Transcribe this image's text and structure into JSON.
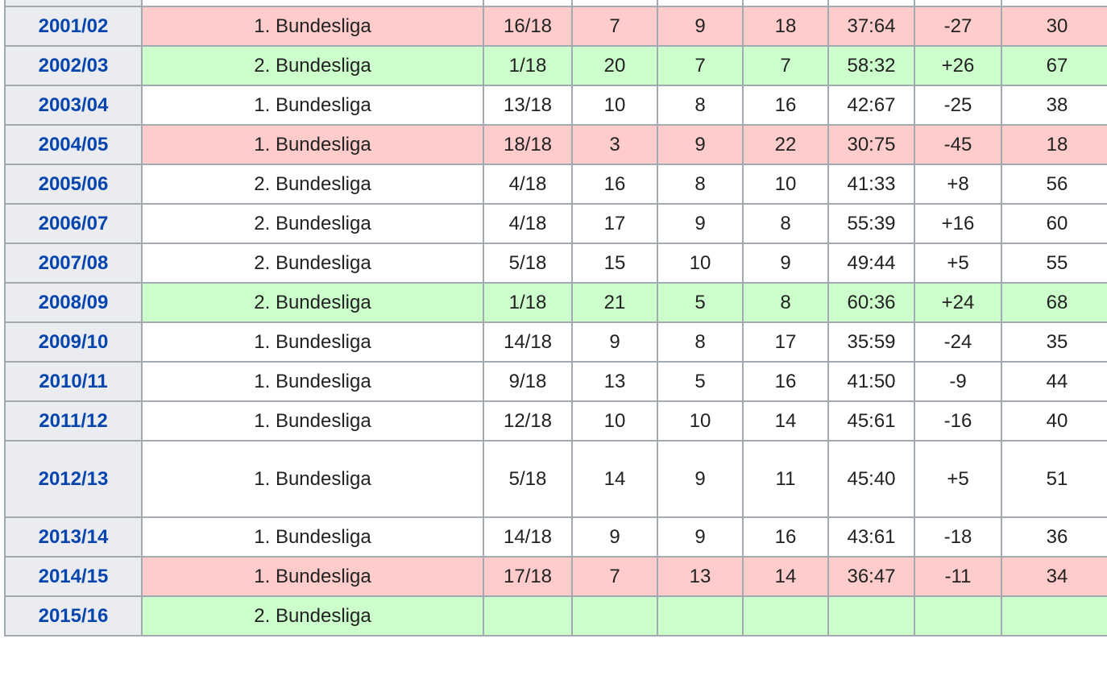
{
  "table": {
    "rows": [
      {
        "season": "2001/02",
        "league": "1. Bundesliga",
        "rank": "16/18",
        "w": "7",
        "d": "9",
        "l": "18",
        "goals": "37:64",
        "diff": "-27",
        "pts": "30",
        "status": "relegated"
      },
      {
        "season": "2002/03",
        "league": "2. Bundesliga",
        "rank": "1/18",
        "w": "20",
        "d": "7",
        "l": "7",
        "goals": "58:32",
        "diff": "+26",
        "pts": "67",
        "status": "promoted"
      },
      {
        "season": "2003/04",
        "league": "1. Bundesliga",
        "rank": "13/18",
        "w": "10",
        "d": "8",
        "l": "16",
        "goals": "42:67",
        "diff": "-25",
        "pts": "38",
        "status": "normal"
      },
      {
        "season": "2004/05",
        "league": "1. Bundesliga",
        "rank": "18/18",
        "w": "3",
        "d": "9",
        "l": "22",
        "goals": "30:75",
        "diff": "-45",
        "pts": "18",
        "status": "relegated"
      },
      {
        "season": "2005/06",
        "league": "2. Bundesliga",
        "rank": "4/18",
        "w": "16",
        "d": "8",
        "l": "10",
        "goals": "41:33",
        "diff": "+8",
        "pts": "56",
        "status": "normal"
      },
      {
        "season": "2006/07",
        "league": "2. Bundesliga",
        "rank": "4/18",
        "w": "17",
        "d": "9",
        "l": "8",
        "goals": "55:39",
        "diff": "+16",
        "pts": "60",
        "status": "normal"
      },
      {
        "season": "2007/08",
        "league": "2. Bundesliga",
        "rank": "5/18",
        "w": "15",
        "d": "10",
        "l": "9",
        "goals": "49:44",
        "diff": "+5",
        "pts": "55",
        "status": "normal"
      },
      {
        "season": "2008/09",
        "league": "2. Bundesliga",
        "rank": "1/18",
        "w": "21",
        "d": "5",
        "l": "8",
        "goals": "60:36",
        "diff": "+24",
        "pts": "68",
        "status": "promoted"
      },
      {
        "season": "2009/10",
        "league": "1. Bundesliga",
        "rank": "14/18",
        "w": "9",
        "d": "8",
        "l": "17",
        "goals": "35:59",
        "diff": "-24",
        "pts": "35",
        "status": "normal"
      },
      {
        "season": "2010/11",
        "league": "1. Bundesliga",
        "rank": "9/18",
        "w": "13",
        "d": "5",
        "l": "16",
        "goals": "41:50",
        "diff": "-9",
        "pts": "44",
        "status": "normal"
      },
      {
        "season": "2011/12",
        "league": "1. Bundesliga",
        "rank": "12/18",
        "w": "10",
        "d": "10",
        "l": "14",
        "goals": "45:61",
        "diff": "-16",
        "pts": "40",
        "status": "normal"
      },
      {
        "season": "2012/13",
        "league": "1. Bundesliga",
        "rank": "5/18",
        "w": "14",
        "d": "9",
        "l": "11",
        "goals": "45:40",
        "diff": "+5",
        "pts": "51",
        "status": "normal",
        "tall": true
      },
      {
        "season": "2013/14",
        "league": "1. Bundesliga",
        "rank": "14/18",
        "w": "9",
        "d": "9",
        "l": "16",
        "goals": "43:61",
        "diff": "-18",
        "pts": "36",
        "status": "normal"
      },
      {
        "season": "2014/15",
        "league": "1. Bundesliga",
        "rank": "17/18",
        "w": "7",
        "d": "13",
        "l": "14",
        "goals": "36:47",
        "diff": "-11",
        "pts": "34",
        "status": "relegated"
      },
      {
        "season": "2015/16",
        "league": "2. Bundesliga",
        "rank": "",
        "w": "",
        "d": "",
        "l": "",
        "goals": "",
        "diff": "",
        "pts": "",
        "status": "promoted"
      }
    ]
  },
  "colors": {
    "relegated": "#ffcccc",
    "promoted": "#ccffcc",
    "header": "#eaecf0",
    "link": "#0645ad",
    "border": "#a2a9b1"
  }
}
